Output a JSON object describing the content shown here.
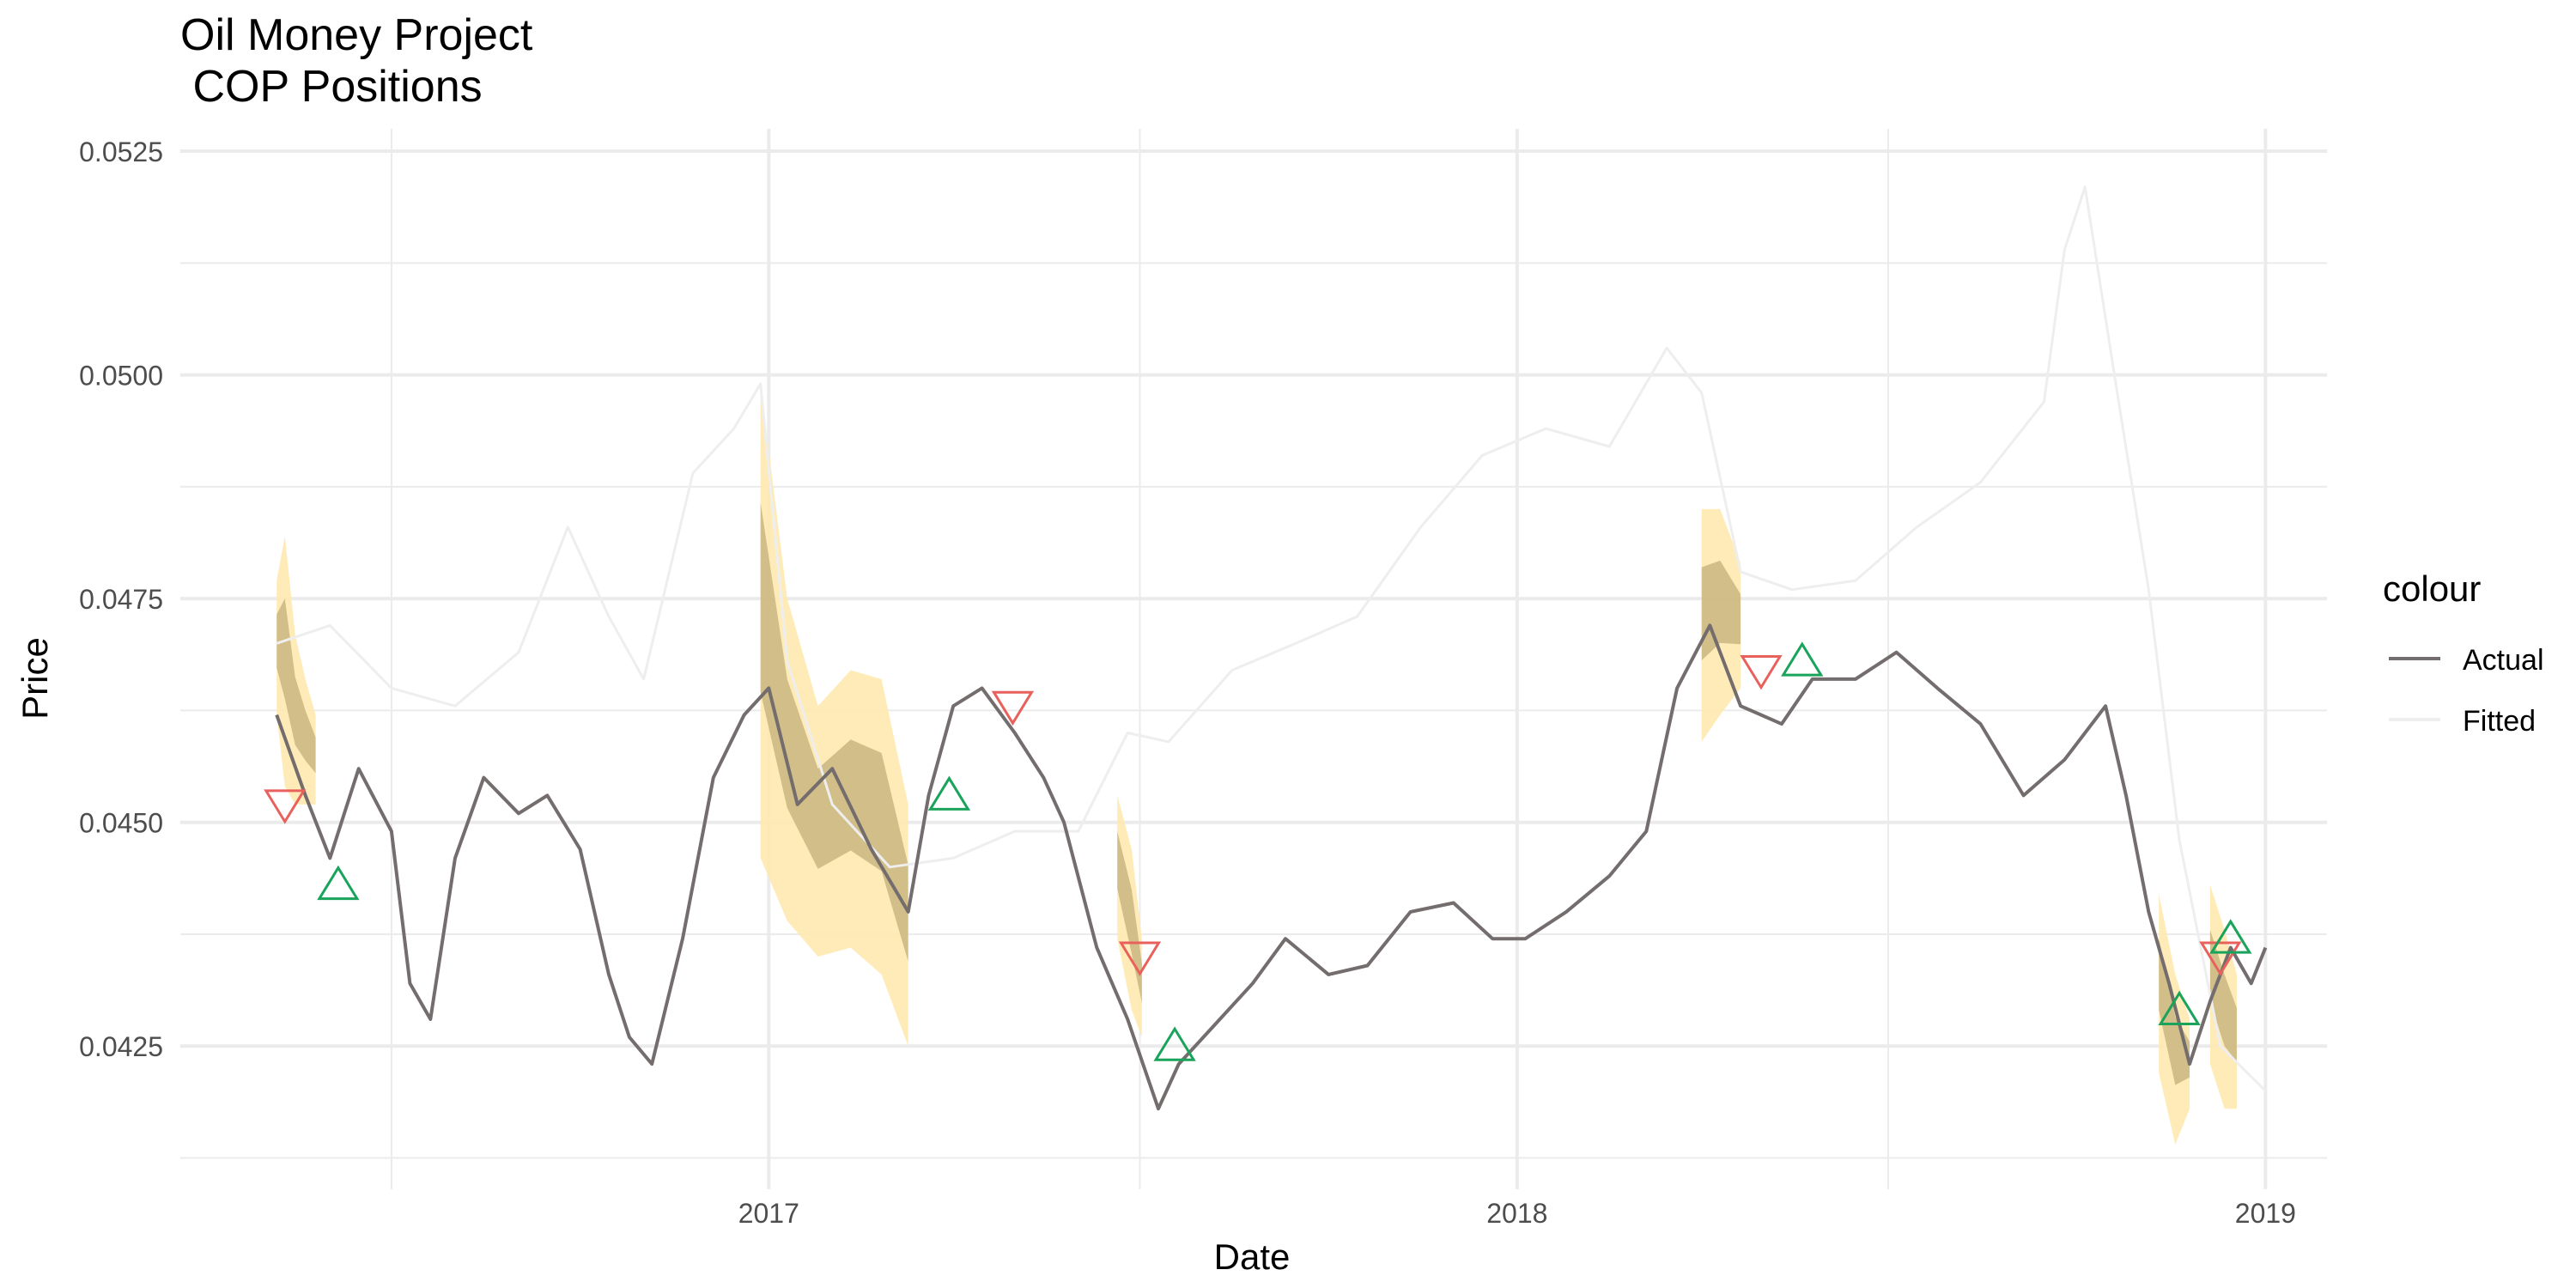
{
  "chart_data": {
    "type": "line",
    "title_lines": [
      "Oil Money Project",
      " COP Positions"
    ],
    "xlabel": "Date",
    "ylabel": "Price",
    "x_ticks": [
      "2017",
      "2018",
      "2019"
    ],
    "y_ticks": [
      "0.0425",
      "0.0450",
      "0.0475",
      "0.0500",
      "0.0525"
    ],
    "x_range": [
      "2016-03-20",
      "2019-01-31"
    ],
    "y_range": [
      0.0409,
      0.05275
    ],
    "grid": true,
    "legend": {
      "title": "colour",
      "position": "right",
      "items": [
        {
          "label": "Actual",
          "color": "#746d6d"
        },
        {
          "label": "Fitted",
          "color": "#eeeeee"
        }
      ]
    },
    "colors": {
      "actual": "#746d6d",
      "fitted": "#eeeeee",
      "band": "#ffe9b0",
      "band_over": "#ad9962",
      "long_signal": "#1aa35a",
      "short_signal": "#e8615d"
    },
    "series": [
      {
        "name": "Actual",
        "x": [
          "2016-05-06",
          "2016-05-20",
          "2016-06-01",
          "2016-06-15",
          "2016-07-01",
          "2016-07-10",
          "2016-07-20",
          "2016-08-01",
          "2016-08-15",
          "2016-09-01",
          "2016-09-15",
          "2016-10-01",
          "2016-10-15",
          "2016-10-25",
          "2016-11-05",
          "2016-11-20",
          "2016-12-05",
          "2016-12-20",
          "2017-01-01",
          "2017-01-15",
          "2017-02-01",
          "2017-02-20",
          "2017-03-10",
          "2017-03-20",
          "2017-04-01",
          "2017-04-15",
          "2017-05-01",
          "2017-05-15",
          "2017-05-25",
          "2017-06-10",
          "2017-06-25",
          "2017-07-10",
          "2017-07-20",
          "2017-08-05",
          "2017-08-25",
          "2017-09-10",
          "2017-10-01",
          "2017-10-20",
          "2017-11-10",
          "2017-12-01",
          "2017-12-20",
          "2018-01-05",
          "2018-01-25",
          "2018-02-15",
          "2018-03-05",
          "2018-03-20",
          "2018-04-05",
          "2018-04-20",
          "2018-05-10",
          "2018-05-25",
          "2018-06-15",
          "2018-07-05",
          "2018-07-25",
          "2018-08-15",
          "2018-09-05",
          "2018-09-25",
          "2018-10-15",
          "2018-10-25",
          "2018-11-05",
          "2018-11-15",
          "2018-11-25",
          "2018-12-05",
          "2018-12-15",
          "2018-12-25",
          "2019-01-01"
        ],
        "y": [
          0.0462,
          0.0453,
          0.0446,
          0.0456,
          0.0449,
          0.0432,
          0.0428,
          0.0446,
          0.0455,
          0.0451,
          0.0453,
          0.0447,
          0.0433,
          0.0426,
          0.0423,
          0.0437,
          0.0455,
          0.0462,
          0.0465,
          0.0452,
          0.0456,
          0.0447,
          0.044,
          0.0453,
          0.0463,
          0.0465,
          0.046,
          0.0455,
          0.045,
          0.0436,
          0.0428,
          0.0418,
          0.0423,
          0.0427,
          0.0432,
          0.0437,
          0.0433,
          0.0434,
          0.044,
          0.0441,
          0.0437,
          0.0437,
          0.044,
          0.0444,
          0.0449,
          0.0465,
          0.0472,
          0.0463,
          0.0461,
          0.0466,
          0.0466,
          0.0469,
          0.0465,
          0.0461,
          0.0453,
          0.0457,
          0.0463,
          0.0453,
          0.044,
          0.0432,
          0.0423,
          0.043,
          0.0436,
          0.0432,
          0.0436
        ]
      },
      {
        "name": "Fitted",
        "x": [
          "2016-05-06",
          "2016-06-01",
          "2016-07-01",
          "2016-08-01",
          "2016-09-01",
          "2016-09-25",
          "2016-10-15",
          "2016-11-01",
          "2016-11-25",
          "2016-12-15",
          "2016-12-28",
          "2017-01-10",
          "2017-02-01",
          "2017-03-01",
          "2017-04-01",
          "2017-05-01",
          "2017-06-01",
          "2017-06-25",
          "2017-07-15",
          "2017-08-15",
          "2017-09-15",
          "2017-10-15",
          "2017-11-15",
          "2017-12-15",
          "2018-01-15",
          "2018-02-15",
          "2018-03-15",
          "2018-04-01",
          "2018-04-20",
          "2018-05-15",
          "2018-06-15",
          "2018-07-15",
          "2018-08-15",
          "2018-09-15",
          "2018-09-25",
          "2018-10-05",
          "2018-10-20",
          "2018-11-05",
          "2018-11-20",
          "2018-12-10",
          "2019-01-01"
        ],
        "y": [
          0.047,
          0.0472,
          0.0465,
          0.0463,
          0.0469,
          0.0483,
          0.0473,
          0.0466,
          0.0489,
          0.0494,
          0.0499,
          0.0468,
          0.0452,
          0.0445,
          0.0446,
          0.0449,
          0.0449,
          0.046,
          0.0459,
          0.0467,
          0.047,
          0.0473,
          0.0483,
          0.0491,
          0.0494,
          0.0492,
          0.0503,
          0.0498,
          0.0478,
          0.0476,
          0.0477,
          0.0483,
          0.0488,
          0.0497,
          0.0514,
          0.0521,
          0.0499,
          0.0476,
          0.0448,
          0.0425,
          0.042
        ]
      }
    ],
    "bands": [
      {
        "x": [
          "2016-05-06",
          "2016-05-10",
          "2016-05-15",
          "2016-05-20",
          "2016-05-25"
        ],
        "upper": [
          0.0477,
          0.0482,
          0.0471,
          0.0466,
          0.0462
        ],
        "lower": [
          0.0462,
          0.0454,
          0.0452,
          0.0452,
          0.0452
        ]
      },
      {
        "x": [
          "2016-12-28",
          "2017-01-10",
          "2017-01-25",
          "2017-02-10",
          "2017-02-25",
          "2017-03-10"
        ],
        "upper": [
          0.0499,
          0.0475,
          0.0463,
          0.0467,
          0.0466,
          0.0452
        ],
        "lower": [
          0.0446,
          0.0439,
          0.0435,
          0.0436,
          0.0433,
          0.0425
        ]
      },
      {
        "x": [
          "2017-06-20",
          "2017-06-27",
          "2017-07-02"
        ],
        "upper": [
          0.0453,
          0.0447,
          0.0437
        ],
        "lower": [
          0.0437,
          0.0429,
          0.0426
        ]
      },
      {
        "x": [
          "2018-04-01",
          "2018-04-10",
          "2018-04-20"
        ],
        "upper": [
          0.0485,
          0.0485,
          0.0479
        ],
        "lower": [
          0.0459,
          0.0462,
          0.0465
        ]
      },
      {
        "x": [
          "2018-11-10",
          "2018-11-18",
          "2018-11-25"
        ],
        "upper": [
          0.0442,
          0.0433,
          0.0428
        ],
        "lower": [
          0.0422,
          0.0414,
          0.0418
        ]
      },
      {
        "x": [
          "2018-12-05",
          "2018-12-12",
          "2018-12-18"
        ],
        "upper": [
          0.0443,
          0.0438,
          0.0433
        ],
        "lower": [
          0.0423,
          0.0418,
          0.0418
        ]
      }
    ],
    "signals": [
      {
        "x": "2016-05-10",
        "y": 0.0452,
        "direction": "short"
      },
      {
        "x": "2016-06-05",
        "y": 0.0443,
        "direction": "long"
      },
      {
        "x": "2017-03-30",
        "y": 0.0453,
        "direction": "long"
      },
      {
        "x": "2017-04-30",
        "y": 0.0463,
        "direction": "short"
      },
      {
        "x": "2017-07-01",
        "y": 0.0435,
        "direction": "short"
      },
      {
        "x": "2017-07-18",
        "y": 0.0425,
        "direction": "long"
      },
      {
        "x": "2018-04-30",
        "y": 0.0467,
        "direction": "short"
      },
      {
        "x": "2018-05-20",
        "y": 0.0468,
        "direction": "long"
      },
      {
        "x": "2018-11-20",
        "y": 0.0429,
        "direction": "long"
      },
      {
        "x": "2018-12-10",
        "y": 0.0435,
        "direction": "short"
      },
      {
        "x": "2018-12-15",
        "y": 0.0437,
        "direction": "long"
      }
    ]
  }
}
